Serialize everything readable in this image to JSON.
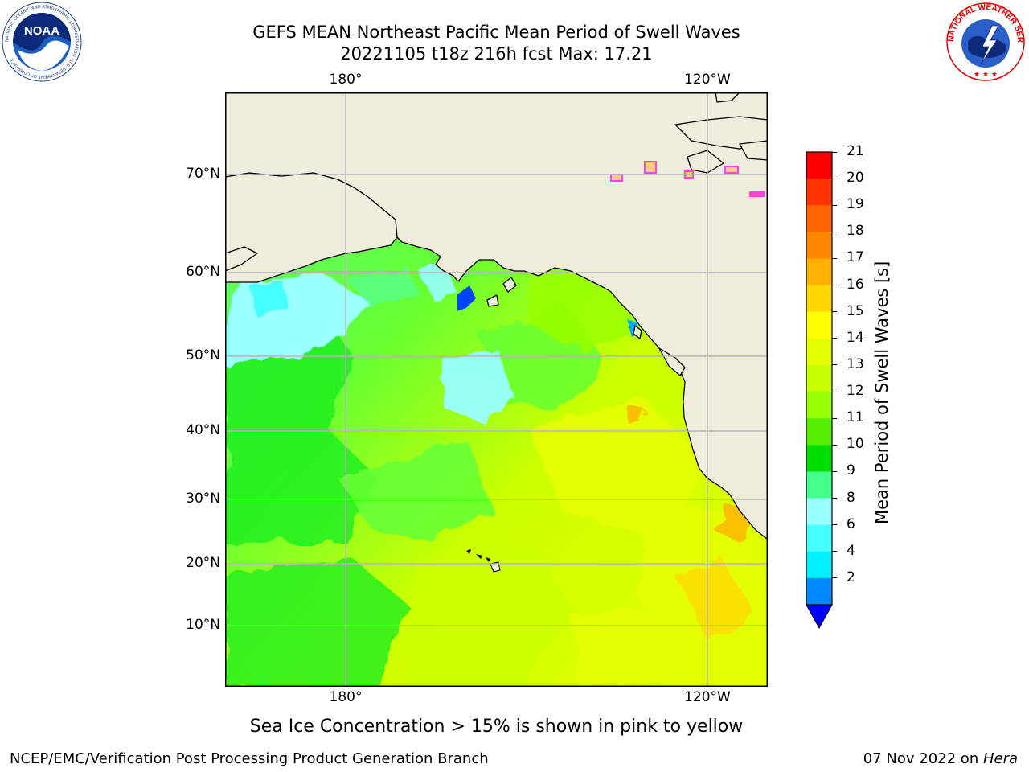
{
  "title": {
    "line1": "GEFS MEAN Northeast Pacific Mean Period of Swell Waves",
    "line2": "20221105 t18z 216h fcst   Max: 17.21"
  },
  "map": {
    "lat_ticks": [
      "70°N",
      "60°N",
      "50°N",
      "40°N",
      "30°N",
      "20°N",
      "10°N"
    ],
    "lon_ticks_top": [
      "180°",
      "120°W"
    ],
    "lon_ticks_bottom": [
      "180°",
      "120°W"
    ],
    "colors": {
      "land": "#efecdc",
      "grid": "#b5b5b5",
      "coast": "#000000",
      "ice_high": "#0000ff",
      "ice_edge": "#ff44dd"
    }
  },
  "colorbar": {
    "label": "Mean Period of Swell Waves [s]",
    "ticks": [
      "21",
      "20",
      "19",
      "18",
      "17",
      "16",
      "15",
      "14",
      "13",
      "12",
      "11",
      "10",
      "9",
      "8",
      "6",
      "4",
      "2"
    ],
    "colors": [
      "#ff0000",
      "#ff3300",
      "#ff6600",
      "#ff8800",
      "#ffb000",
      "#ffd700",
      "#ffff00",
      "#e6ff00",
      "#c8ff00",
      "#99ff00",
      "#55ee00",
      "#00dd00",
      "#44ff88",
      "#99ffff",
      "#44ffff",
      "#00f0ff",
      "#0088ff"
    ],
    "extend_color": "#0000ff"
  },
  "logos": {
    "left": {
      "text": "NOAA",
      "ring": "NATIONAL OCEANIC AND ATMOSPHERIC ADMINISTRATION · U.S. DEPARTMENT OF COMMERCE"
    },
    "right": {
      "ring": "NATIONAL WEATHER SERVICE"
    }
  },
  "note": "Sea Ice Concentration > 15% is shown in pink to yellow",
  "footer": {
    "left": "NCEP/EMC/Verification Post Processing Product Generation Branch",
    "right_prefix": "07 Nov 2022 on ",
    "right_italic": "Hera"
  }
}
